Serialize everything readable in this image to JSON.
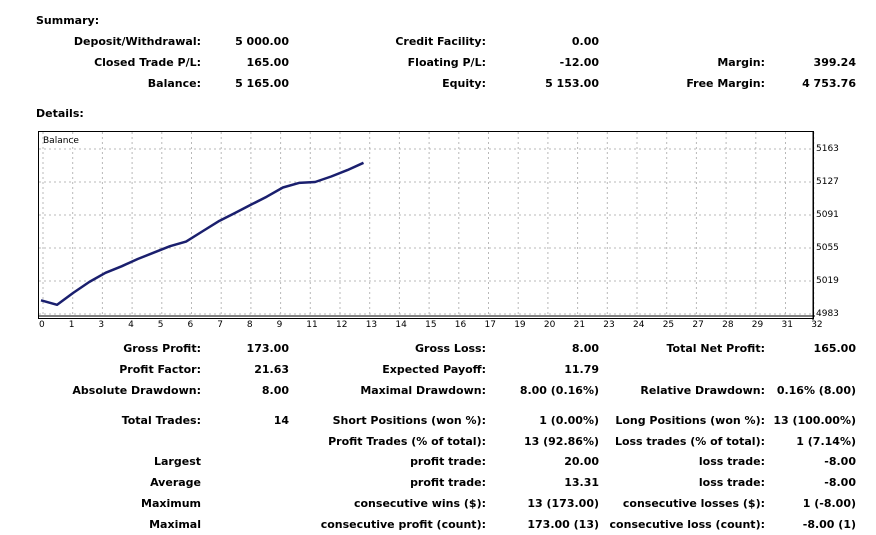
{
  "summary": {
    "title": "Summary:",
    "rows": [
      [
        {
          "label": "Deposit/Withdrawal:",
          "value": "5 000.00"
        },
        {
          "label": "Credit Facility:",
          "value": "0.00"
        },
        {
          "label": "",
          "value": ""
        }
      ],
      [
        {
          "label": "Closed Trade P/L:",
          "value": "165.00"
        },
        {
          "label": "Floating P/L:",
          "value": "-12.00"
        },
        {
          "label": "Margin:",
          "value": "399.24"
        }
      ],
      [
        {
          "label": "Balance:",
          "value": "5 165.00"
        },
        {
          "label": "Equity:",
          "value": "5 153.00"
        },
        {
          "label": "Free Margin:",
          "value": "4 753.76"
        }
      ]
    ]
  },
  "details": {
    "title": "Details:"
  },
  "chart_data": {
    "type": "line",
    "title": "Balance",
    "line_color": "#1a1f6e",
    "grid": true,
    "x_ticks": [
      "0",
      "1",
      "3",
      "4",
      "5",
      "6",
      "7",
      "8",
      "9",
      "11",
      "12",
      "13",
      "14",
      "15",
      "16",
      "17",
      "19",
      "20",
      "21",
      "23",
      "24",
      "25",
      "27",
      "28",
      "29",
      "31",
      "32"
    ],
    "y_ticks": [
      "5163",
      "5127",
      "5091",
      "5055",
      "5019",
      "4983"
    ],
    "xlim": [
      0,
      32
    ],
    "ylim": [
      4983,
      5163
    ],
    "series": [
      {
        "x": [
          0,
          0.7,
          1.4,
          2.1,
          2.8,
          3.5,
          4.2,
          4.9,
          5.6,
          6.3,
          7.0,
          7.7,
          8.4,
          9.1,
          9.8,
          10.5,
          11.2,
          11.9,
          12.6,
          13.3,
          14.0
        ],
        "y": [
          4998,
          4993,
          5006,
          5018,
          5028,
          5035,
          5043,
          5050,
          5057,
          5062,
          5073,
          5084,
          5093,
          5102,
          5111,
          5121,
          5126,
          5127,
          5133,
          5140,
          5148
        ]
      }
    ]
  },
  "stats": {
    "rows": [
      [
        {
          "label": "Gross Profit:",
          "value": "173.00"
        },
        {
          "label": "Gross Loss:",
          "value": "8.00"
        },
        {
          "label": "Total Net Profit:",
          "value": "165.00"
        }
      ],
      [
        {
          "label": "Profit Factor:",
          "value": "21.63"
        },
        {
          "label": "Expected Payoff:",
          "value": "11.79"
        },
        {
          "label": "",
          "value": ""
        }
      ],
      [
        {
          "label": "Absolute Drawdown:",
          "value": "8.00"
        },
        {
          "label": "Maximal Drawdown:",
          "value": "8.00 (0.16%)"
        },
        {
          "label": "Relative Drawdown:",
          "value": "0.16% (8.00)"
        }
      ],
      [
        {
          "label": "Total Trades:",
          "value": "14"
        },
        {
          "label": "Short Positions (won %):",
          "value": "1 (0.00%)"
        },
        {
          "label": "Long Positions (won %):",
          "value": "13 (100.00%)"
        }
      ],
      [
        {
          "label": "",
          "value": ""
        },
        {
          "label": "Profit Trades (% of total):",
          "value": "13 (92.86%)"
        },
        {
          "label": "Loss trades (% of total):",
          "value": "1 (7.14%)"
        }
      ],
      [
        {
          "label": "Largest",
          "value": ""
        },
        {
          "label": "profit trade:",
          "value": "20.00"
        },
        {
          "label": "loss trade:",
          "value": "-8.00"
        }
      ],
      [
        {
          "label": "Average",
          "value": ""
        },
        {
          "label": "profit trade:",
          "value": "13.31"
        },
        {
          "label": "loss trade:",
          "value": "-8.00"
        }
      ],
      [
        {
          "label": "Maximum",
          "value": ""
        },
        {
          "label": "consecutive wins ($):",
          "value": "13 (173.00)"
        },
        {
          "label": "consecutive losses ($):",
          "value": "1 (-8.00)"
        }
      ],
      [
        {
          "label": "Maximal",
          "value": ""
        },
        {
          "label": "consecutive profit (count):",
          "value": "173.00 (13)"
        },
        {
          "label": "consecutive loss (count):",
          "value": "-8.00 (1)"
        }
      ]
    ]
  }
}
